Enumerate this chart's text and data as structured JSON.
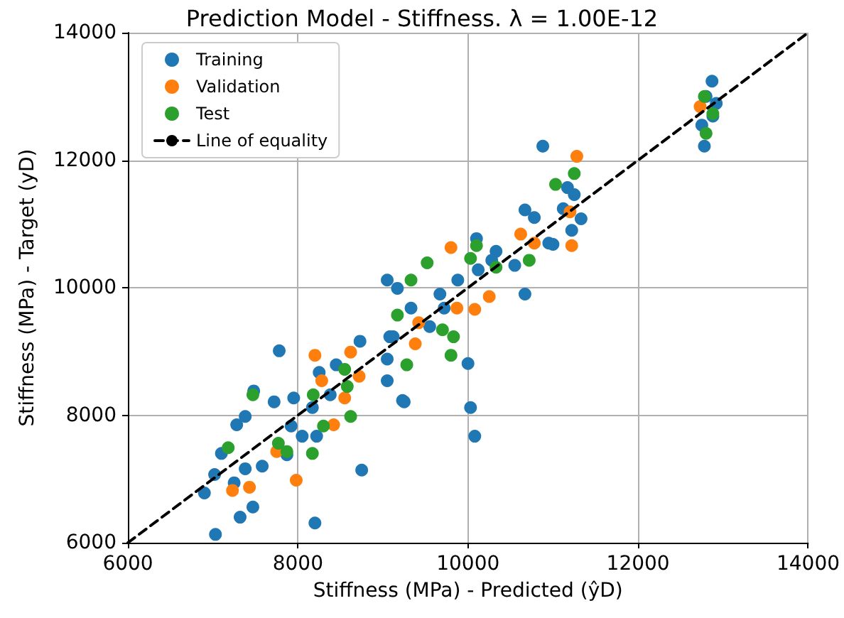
{
  "chart_data": {
    "type": "scatter",
    "title": "Prediction Model - Stiffness. λ = 1.00E-12",
    "xlabel": "Stiffness (MPa) - Predicted (ŷD)",
    "ylabel": "Stiffness (MPa) - Target (yD)",
    "xlim": [
      6000,
      14000
    ],
    "ylim": [
      6000,
      14000
    ],
    "xticks": [
      6000,
      8000,
      10000,
      12000,
      14000
    ],
    "yticks": [
      6000,
      8000,
      10000,
      12000,
      14000
    ],
    "grid": true,
    "legend": "top left",
    "marker": "circle",
    "series": [
      {
        "name": "Training",
        "color": "#1f77b4",
        "x": [
          7030,
          7320,
          7470,
          8200,
          8750,
          9230,
          6900,
          7020,
          7100,
          7280,
          7380,
          7480,
          7720,
          7780,
          7870,
          7950,
          7920,
          7380,
          7250,
          7580,
          8170,
          8250,
          8380,
          8730,
          9050,
          9120,
          8450,
          8050,
          8220,
          10080,
          10030,
          9250,
          9050,
          10000,
          10670,
          10950,
          11220,
          11330,
          9050,
          9170,
          9670,
          9880,
          10330,
          10550,
          9550,
          9720,
          9330,
          10120,
          10280,
          10780,
          9080,
          12870,
          12800,
          12880,
          12750,
          12780,
          12920,
          11170,
          11250,
          11000,
          11120,
          10880,
          10670,
          10100
        ],
        "values": [
          6130,
          6400,
          6560,
          6310,
          7140,
          8230,
          6780,
          7070,
          7400,
          7850,
          7980,
          8380,
          8210,
          9010,
          7380,
          8270,
          7830,
          7160,
          6940,
          7200,
          8120,
          8670,
          8320,
          9160,
          8880,
          9230,
          8790,
          7670,
          7670,
          7670,
          8120,
          8210,
          8540,
          8810,
          9900,
          10700,
          10900,
          11080,
          10120,
          9990,
          9900,
          10120,
          10570,
          10350,
          9390,
          9680,
          9680,
          10280,
          10430,
          11100,
          9230,
          13240,
          13000,
          12690,
          12550,
          12220,
          12890,
          11570,
          11460,
          10680,
          11240,
          12220,
          11220,
          10770
        ]
      },
      {
        "name": "Validation",
        "color": "#ff7f0e",
        "x": [
          7230,
          7430,
          7980,
          7750,
          8420,
          8550,
          8280,
          8200,
          8620,
          8720,
          9800,
          10620,
          11220,
          10780,
          10080,
          10250,
          9870,
          9380,
          9420,
          12730,
          11280,
          11200
        ],
        "values": [
          6820,
          6870,
          6980,
          7430,
          7850,
          8270,
          8540,
          8940,
          8990,
          8610,
          10630,
          10840,
          10660,
          10700,
          9660,
          9860,
          9680,
          9120,
          9450,
          12840,
          12060,
          11190
        ]
      },
      {
        "name": "Test",
        "color": "#2ca02c",
        "x": [
          7470,
          7180,
          7770,
          7870,
          8170,
          8300,
          8620,
          8580,
          8550,
          8180,
          9520,
          10100,
          10030,
          9330,
          10720,
          9170,
          9700,
          9830,
          9800,
          9280,
          10330,
          12780,
          12880,
          12800,
          11250,
          11030
        ],
        "values": [
          8320,
          7490,
          7560,
          7430,
          7400,
          7830,
          7980,
          8450,
          8720,
          8320,
          10390,
          10660,
          10460,
          10120,
          10430,
          9570,
          9340,
          9230,
          8940,
          8790,
          10320,
          13000,
          12730,
          12420,
          11790,
          11620
        ]
      },
      {
        "name": "Line of equality",
        "type": "line",
        "color": "#000000",
        "line_style": "dashed",
        "marker": "none",
        "x": [
          6000,
          14000
        ],
        "values": [
          6000,
          14000
        ]
      }
    ]
  }
}
